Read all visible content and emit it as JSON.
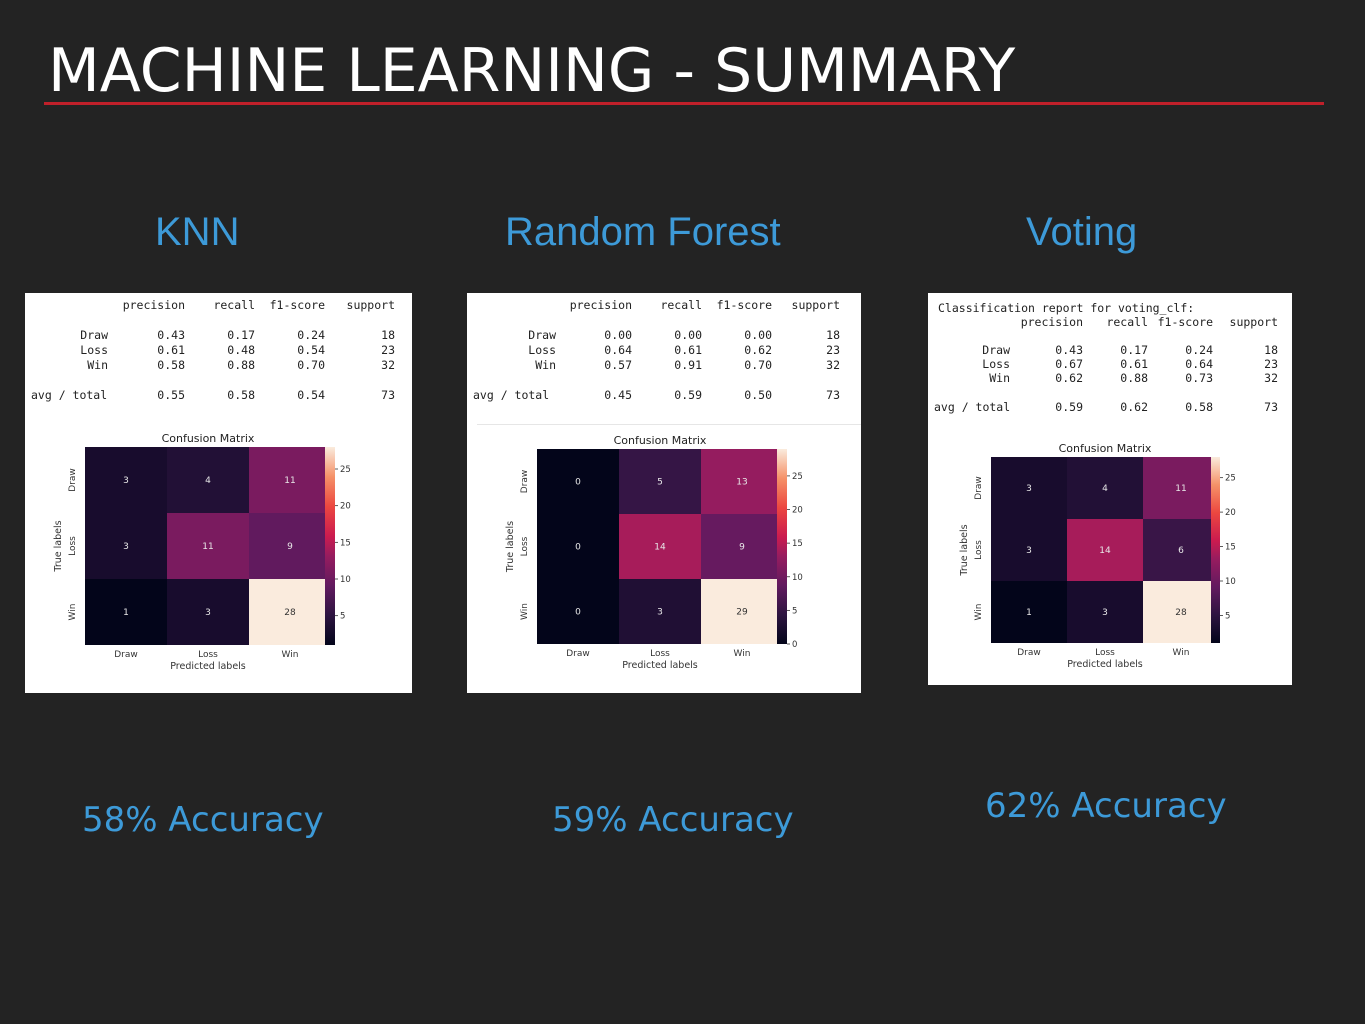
{
  "slide": {
    "title": "MACHINE LEARNING - SUMMARY"
  },
  "colors": {
    "background": "#232323",
    "title": "#ffffff",
    "rule": "#c0202a",
    "accent": "#3d9ad8"
  },
  "report_columns": [
    "precision",
    "recall",
    "f1-score",
    "support"
  ],
  "models": [
    {
      "name": "KNN",
      "accuracy_label": "58% Accuracy",
      "report_heading": "",
      "rows": [
        {
          "label": "Draw",
          "precision": "0.43",
          "recall": "0.17",
          "f1": "0.24",
          "support": "18"
        },
        {
          "label": "Loss",
          "precision": "0.61",
          "recall": "0.48",
          "f1": "0.54",
          "support": "23"
        },
        {
          "label": "Win",
          "precision": "0.58",
          "recall": "0.88",
          "f1": "0.70",
          "support": "32"
        }
      ],
      "total": {
        "label": "avg / total",
        "precision": "0.55",
        "recall": "0.58",
        "f1": "0.54",
        "support": "73"
      },
      "chart_data": {
        "type": "heatmap",
        "title": "Confusion Matrix",
        "xlabel": "Predicted labels",
        "ylabel": "True labels",
        "x_categories": [
          "Draw",
          "Loss",
          "Win"
        ],
        "y_categories": [
          "Draw",
          "Loss",
          "Win"
        ],
        "values": [
          [
            3,
            4,
            11
          ],
          [
            3,
            11,
            9
          ],
          [
            1,
            3,
            28
          ]
        ],
        "colorbar_range": [
          1,
          28
        ],
        "colorbar_ticks": [
          5,
          10,
          15,
          20,
          25
        ]
      }
    },
    {
      "name": "Random Forest",
      "accuracy_label": "59% Accuracy",
      "report_heading": "",
      "rows": [
        {
          "label": "Draw",
          "precision": "0.00",
          "recall": "0.00",
          "f1": "0.00",
          "support": "18"
        },
        {
          "label": "Loss",
          "precision": "0.64",
          "recall": "0.61",
          "f1": "0.62",
          "support": "23"
        },
        {
          "label": "Win",
          "precision": "0.57",
          "recall": "0.91",
          "f1": "0.70",
          "support": "32"
        }
      ],
      "total": {
        "label": "avg / total",
        "precision": "0.45",
        "recall": "0.59",
        "f1": "0.50",
        "support": "73"
      },
      "chart_data": {
        "type": "heatmap",
        "title": "Confusion Matrix",
        "xlabel": "Predicted labels",
        "ylabel": "True labels",
        "x_categories": [
          "Draw",
          "Loss",
          "Win"
        ],
        "y_categories": [
          "Draw",
          "Loss",
          "Win"
        ],
        "values": [
          [
            0,
            5,
            13
          ],
          [
            0,
            14,
            9
          ],
          [
            0,
            3,
            29
          ]
        ],
        "colorbar_range": [
          0,
          29
        ],
        "colorbar_ticks": [
          0,
          5,
          10,
          15,
          20,
          25
        ]
      }
    },
    {
      "name": "Voting",
      "accuracy_label": "62% Accuracy",
      "report_heading": "Classification report for voting_clf:",
      "rows": [
        {
          "label": "Draw",
          "precision": "0.43",
          "recall": "0.17",
          "f1": "0.24",
          "support": "18"
        },
        {
          "label": "Loss",
          "precision": "0.67",
          "recall": "0.61",
          "f1": "0.64",
          "support": "23"
        },
        {
          "label": "Win",
          "precision": "0.62",
          "recall": "0.88",
          "f1": "0.73",
          "support": "32"
        }
      ],
      "total": {
        "label": "avg / total",
        "precision": "0.59",
        "recall": "0.62",
        "f1": "0.58",
        "support": "73"
      },
      "chart_data": {
        "type": "heatmap",
        "title": "Confusion Matrix",
        "xlabel": "Predicted labels",
        "ylabel": "True labels",
        "x_categories": [
          "Draw",
          "Loss",
          "Win"
        ],
        "y_categories": [
          "Draw",
          "Loss",
          "Win"
        ],
        "values": [
          [
            3,
            4,
            11
          ],
          [
            3,
            14,
            6
          ],
          [
            1,
            3,
            28
          ]
        ],
        "colorbar_range": [
          1,
          28
        ],
        "colorbar_ticks": [
          5,
          10,
          15,
          20,
          25
        ]
      }
    }
  ]
}
